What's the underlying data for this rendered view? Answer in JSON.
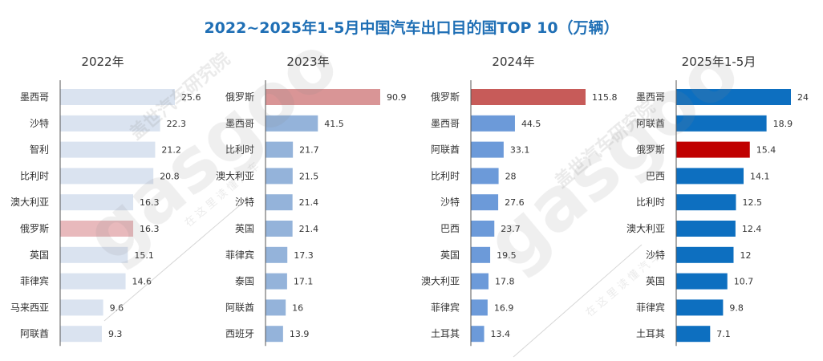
{
  "title": "2022~2025年1-5月中国汽车出口目的国TOP 10（万辆）",
  "watermark": {
    "brand": "gasgoo",
    "cn": "盖世汽车研究院",
    "slogan": "在 这 里 读 懂 汽 车"
  },
  "chart_data": [
    {
      "type": "bar",
      "title": "2022年",
      "categories": [
        "墨西哥",
        "沙特",
        "智利",
        "比利时",
        "澳大利亚",
        "俄罗斯",
        "英国",
        "菲律宾",
        "马来西亚",
        "阿联酋"
      ],
      "values": [
        25.6,
        22.3,
        21.2,
        20.8,
        16.3,
        16.3,
        15.1,
        14.6,
        9.6,
        9.3
      ],
      "highlight": "俄罗斯",
      "bar_color": "#dae3f0",
      "highlight_color": "#e8b9bc",
      "xlim": [
        0,
        25.6
      ]
    },
    {
      "type": "bar",
      "title": "2023年",
      "categories": [
        "俄罗斯",
        "墨西哥",
        "比利时",
        "澳大利亚",
        "沙特",
        "英国",
        "菲律宾",
        "泰国",
        "阿联酋",
        "西班牙"
      ],
      "values": [
        90.9,
        41.5,
        21.7,
        21.5,
        21.4,
        21.4,
        17.3,
        17.1,
        16,
        13.9
      ],
      "highlight": "俄罗斯",
      "bar_color": "#94b3da",
      "highlight_color": "#d99596",
      "xlim": [
        0,
        90.9
      ]
    },
    {
      "type": "bar",
      "title": "2024年",
      "categories": [
        "俄罗斯",
        "墨西哥",
        "阿联酋",
        "比利时",
        "沙特",
        "巴西",
        "英国",
        "澳大利亚",
        "菲律宾",
        "土耳其"
      ],
      "values": [
        115.8,
        44.5,
        33.1,
        28,
        27.6,
        23.7,
        19.5,
        17.8,
        16.9,
        13.4
      ],
      "highlight": "俄罗斯",
      "bar_color": "#6c9ad9",
      "highlight_color": "#c75b59",
      "xlim": [
        0,
        115.8
      ]
    },
    {
      "type": "bar",
      "title": "2025年1-5月",
      "categories": [
        "墨西哥",
        "阿联酋",
        "俄罗斯",
        "巴西",
        "比利时",
        "澳大利亚",
        "沙特",
        "英国",
        "菲律宾",
        "土耳其"
      ],
      "values": [
        24,
        18.9,
        15.4,
        14.1,
        12.5,
        12.4,
        12,
        10.7,
        9.8,
        7.1
      ],
      "highlight": "俄罗斯",
      "bar_color": "#0d6fc0",
      "highlight_color": "#c00000",
      "xlim": [
        0,
        24
      ]
    }
  ]
}
